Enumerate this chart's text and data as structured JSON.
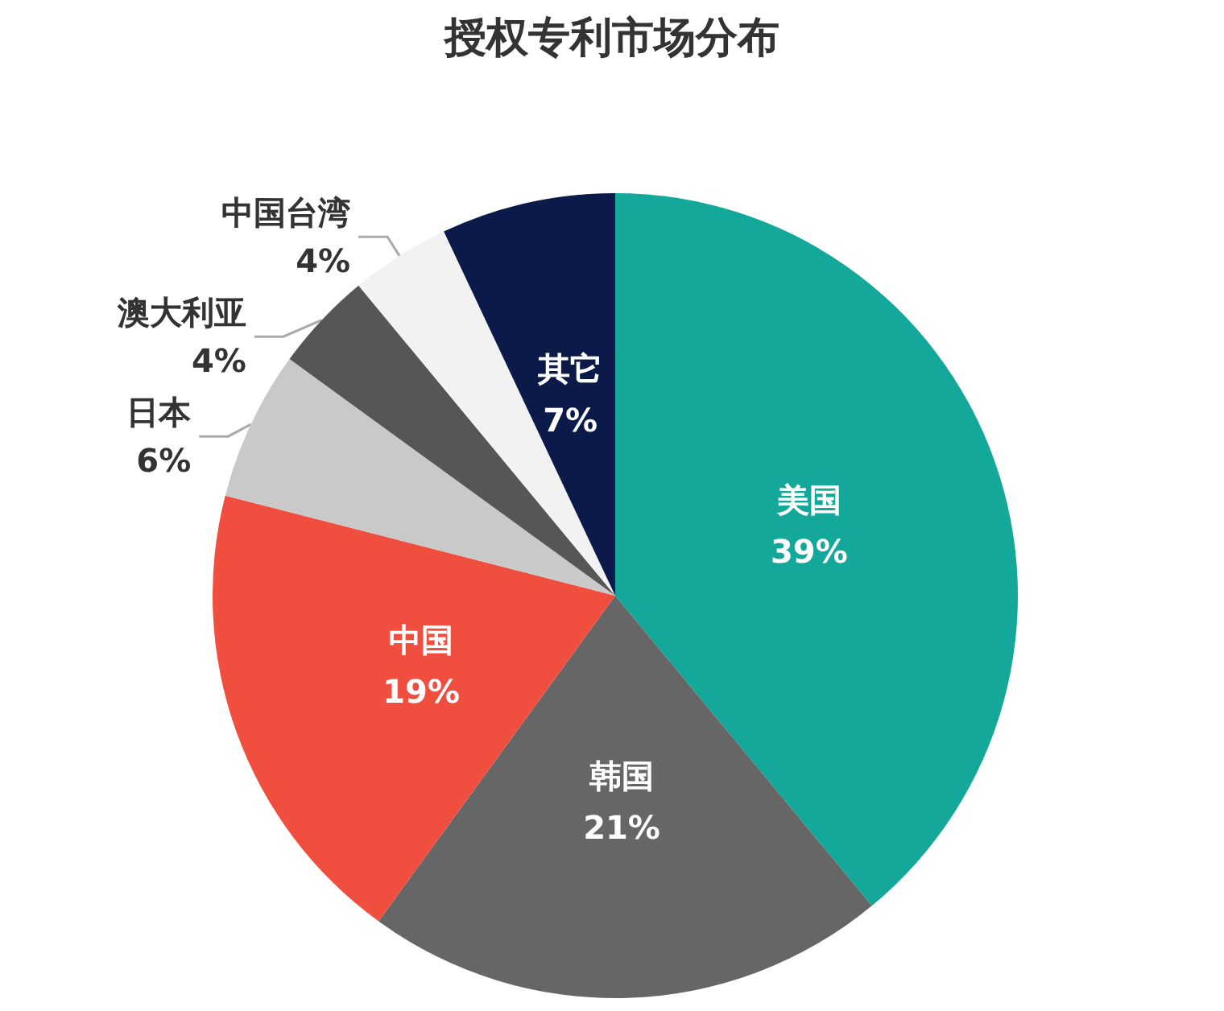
{
  "chart_data": {
    "type": "pie",
    "title": "授权专利市场分布",
    "categories": [
      "美国",
      "韩国",
      "中国",
      "日本",
      "澳大利亚",
      "中国台湾",
      "其它"
    ],
    "values": [
      39,
      21,
      19,
      6,
      4,
      4,
      7
    ],
    "value_labels": [
      "39%",
      "21%",
      "19%",
      "6%",
      "4%",
      "4%",
      "7%"
    ],
    "colors": [
      "#13a89a",
      "#666666",
      "#f04e3e",
      "#c9c9c9",
      "#565656",
      "#f2f2f2",
      "#0c1a4a"
    ],
    "legend": false
  }
}
